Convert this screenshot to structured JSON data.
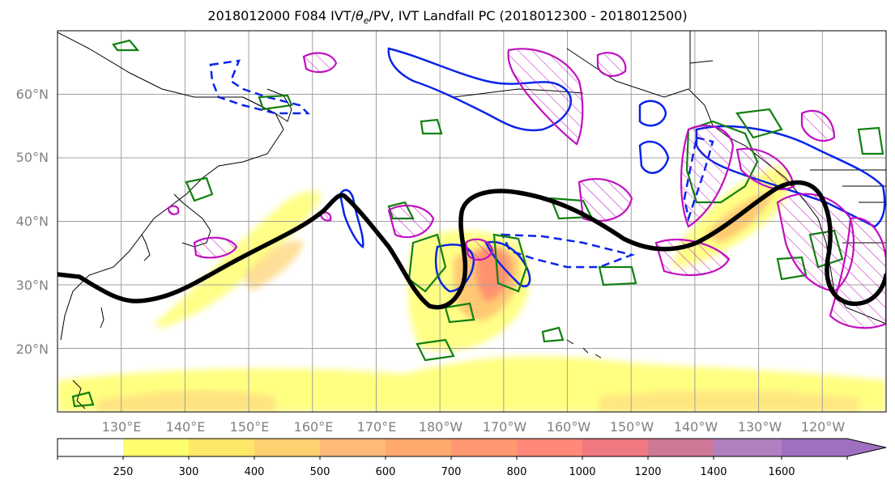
{
  "title": {
    "prefix": "2018012000 F084 IVT/",
    "theta": "θ",
    "theta_sub": "e",
    "suffix": "/PV, IVT Landfall PC (2018012300 - 2018012500)"
  },
  "lat_labels": [
    "60°N",
    "50°N",
    "40°N",
    "30°N",
    "20°N"
  ],
  "lat_values": [
    60,
    50,
    40,
    30,
    20
  ],
  "lon_labels": [
    "130°E",
    "140°E",
    "150°E",
    "160°E",
    "170°E",
    "180°W",
    "170°W",
    "160°W",
    "150°W",
    "140°W",
    "130°W",
    "120°W"
  ],
  "lon_values": [
    130,
    140,
    150,
    160,
    170,
    180,
    190,
    200,
    210,
    220,
    230,
    240
  ],
  "colorbar": {
    "ticks": [
      "250",
      "300",
      "400",
      "500",
      "600",
      "700",
      "800",
      "1000",
      "1200",
      "1400",
      "1600"
    ],
    "colors": [
      "#ffffff",
      "#ffff6e",
      "#ffe868",
      "#ffd070",
      "#ffba7a",
      "#ffa86e",
      "#ff9870",
      "#ff8878",
      "#f07880",
      "#d07898",
      "#b080c0",
      "#a070c0"
    ]
  },
  "map": {
    "extent_lon": [
      120,
      250
    ],
    "extent_lat": [
      10,
      70
    ],
    "colors": {
      "ivt_fill": "#ffd870",
      "pv_line": "#000000",
      "green_contour": "#108010",
      "blue_contour": "#0a24e8",
      "magenta_contour": "#c010c0",
      "coast": "#000000",
      "grid": "#a0a0a0"
    }
  }
}
